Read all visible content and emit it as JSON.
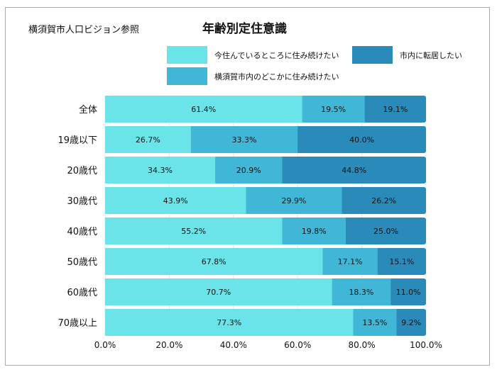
{
  "source_note": "横須賀市人口ビジョン参照",
  "chart_data": {
    "type": "bar",
    "orientation": "horizontal",
    "stacked": "percent",
    "title": "年齢別定住意識",
    "categories": [
      "全体",
      "19歳以下",
      "20歳代",
      "30歳代",
      "40歳代",
      "50歳代",
      "60歳代",
      "70歳以上"
    ],
    "series": [
      {
        "name": "今住んでいるところに住み続けたい",
        "color": "#6ae4e8",
        "values": [
          61.4,
          26.7,
          34.3,
          43.9,
          55.2,
          67.8,
          70.7,
          77.3
        ]
      },
      {
        "name": "横須賀市内のどこかに住み続けたい",
        "color": "#40b7d6",
        "values": [
          19.5,
          33.3,
          20.9,
          29.9,
          19.8,
          17.1,
          18.3,
          13.5
        ]
      },
      {
        "name": "市内に転居したい",
        "color": "#2a8bbb",
        "values": [
          19.1,
          40.0,
          44.8,
          26.2,
          25.0,
          15.1,
          11.0,
          9.2
        ]
      }
    ],
    "xlim": [
      0,
      100
    ],
    "xticks": [
      "0.0%",
      "20.0%",
      "40.0%",
      "60.0%",
      "80.0%",
      "100.0%"
    ],
    "grid": "vertical",
    "legend": "top"
  }
}
